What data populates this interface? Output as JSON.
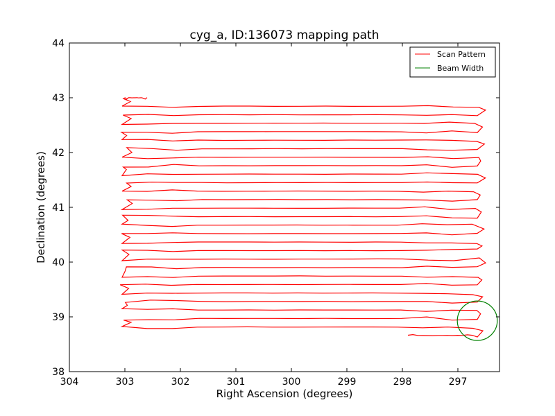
{
  "chart_data": {
    "type": "line",
    "title": "cyg_a, ID:136073 mapping path",
    "xlabel": "Right Ascension (degrees)",
    "ylabel": "Declination (degrees)",
    "xlim": [
      304,
      296.25
    ],
    "ylim": [
      38,
      44
    ],
    "xticks": [
      "304",
      "303",
      "302",
      "301",
      "300",
      "299",
      "298",
      "297"
    ],
    "xtick_values": [
      304,
      303,
      302,
      301,
      300,
      299,
      298,
      297
    ],
    "yticks": [
      "38",
      "39",
      "40",
      "41",
      "42",
      "43",
      "44"
    ],
    "ytick_values": [
      38,
      39,
      40,
      41,
      42,
      43,
      44
    ],
    "grid": false,
    "legend_position": "top-right",
    "series": [
      {
        "name": "Scan Pattern",
        "color": "#ff0000",
        "rows_start": 43.0,
        "rows_step": -0.155,
        "rows_count": 29,
        "ra_left_turn": 303.1,
        "ra_right_turn": 296.6,
        "ra_start": 302.6,
        "ra_end": 297.9
      },
      {
        "name": "Beam Width",
        "color": "#008000",
        "center": [
          296.65,
          38.93
        ],
        "radius": 0.36
      }
    ]
  }
}
